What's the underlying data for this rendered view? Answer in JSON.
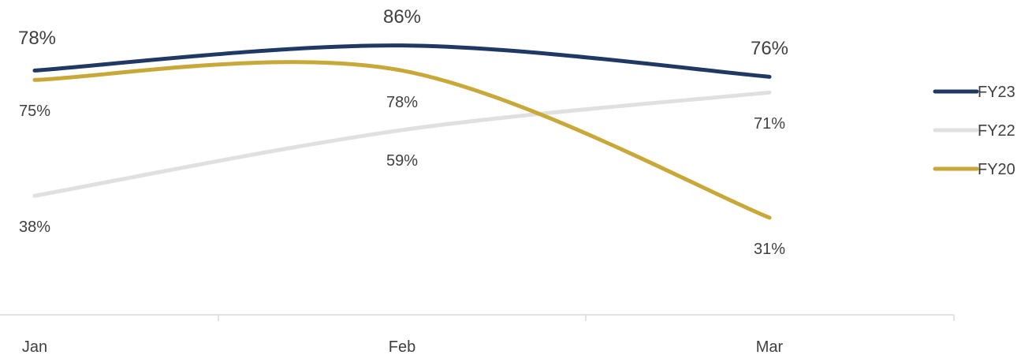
{
  "chart_data": {
    "type": "line",
    "categories": [
      "Jan",
      "Feb",
      "Mar"
    ],
    "series": [
      {
        "name": "FY23",
        "values": [
          78,
          86,
          76
        ],
        "color": "#1f3864"
      },
      {
        "name": "FY22",
        "values": [
          38,
          59,
          71
        ],
        "color": "#e0e0e0"
      },
      {
        "name": "FY20",
        "values": [
          75,
          78,
          31
        ],
        "color": "#c9a83a"
      }
    ],
    "data_labels": [
      [
        "78%",
        "86%",
        "76%"
      ],
      [
        "38%",
        "59%",
        "71%"
      ],
      [
        "75%",
        "78%",
        "31%"
      ]
    ],
    "legend": [
      "FY23",
      "FY22",
      "FY20"
    ],
    "legend_position": "right",
    "smooth": true,
    "grid": false,
    "title": "",
    "xlabel": "",
    "ylabel": ""
  }
}
